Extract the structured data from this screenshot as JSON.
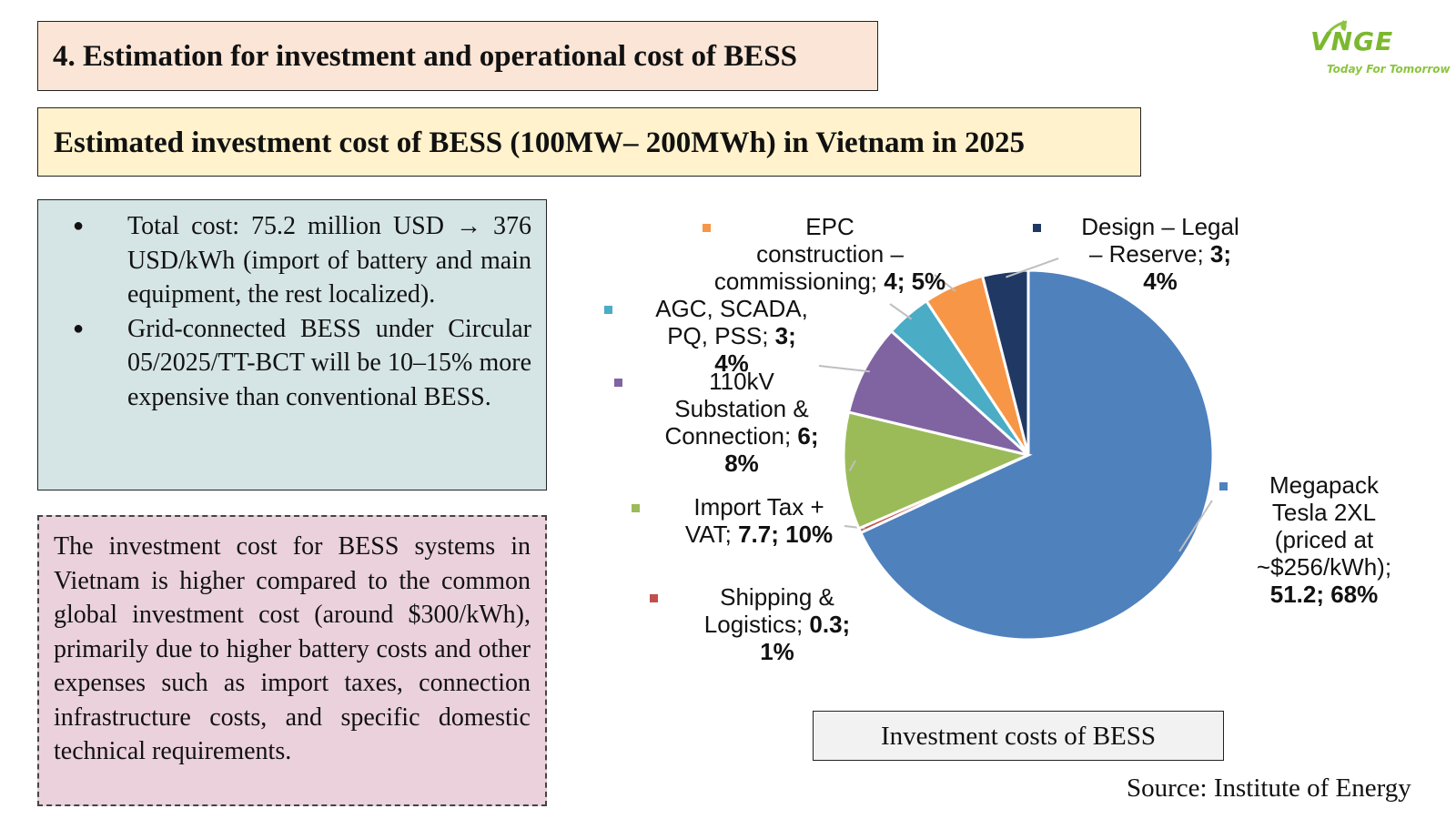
{
  "header": {
    "title": "4. Estimation for investment and operational cost of BESS",
    "subtitle": "Estimated investment cost of BESS (100MW– 200MWh) in Vietnam in 2025"
  },
  "logo": {
    "text": "VNGE",
    "tagline": "Today For Tomorrow",
    "color": "#7cb82f"
  },
  "bullets": [
    "Total cost: 75.2 million USD → 376 USD/kWh (import of battery and main equipment, the rest localized).",
    "Grid-connected BESS under Circular 05/2025/TT-BCT will be 10–15% more expensive than conventional BESS."
  ],
  "note": "The investment cost for BESS systems in Vietnam is higher compared to the common global investment cost (around $300/kWh), primarily due to higher battery costs and other expenses such as import taxes, connection infrastructure costs, and specific domestic technical requirements.",
  "chart_data": {
    "type": "pie",
    "caption": "Investment costs of BESS",
    "source": "Source: Institute of Energy",
    "slices": [
      {
        "name_lines": [
          "Megapack",
          "Tesla 2XL",
          "(priced at",
          "~$256/kWh);"
        ],
        "value": 51.2,
        "value_label": "51.2; 68%",
        "color": "#4f81bd"
      },
      {
        "name_lines": [
          "Shipping &",
          "Logistics;"
        ],
        "value": 0.3,
        "value_label": "0.3;",
        "value_label2": "1%",
        "color": "#c0504d"
      },
      {
        "name_lines": [
          "Import Tax +",
          "VAT;"
        ],
        "value": 7.7,
        "value_label": "7.7; 10%",
        "color": "#9bbb59"
      },
      {
        "name_lines": [
          "110kV",
          "Substation &",
          "Connection;"
        ],
        "value": 6,
        "value_label": "6;",
        "value_label2": "8%",
        "color": "#8064a2"
      },
      {
        "name_lines": [
          "AGC, SCADA,",
          "PQ, PSS;"
        ],
        "value": 3,
        "value_label": "3;",
        "value_label2": "4%",
        "color": "#4bacc6"
      },
      {
        "name_lines": [
          "EPC",
          "construction –",
          "commissioning;"
        ],
        "value": 4,
        "value_label": "4; 5%",
        "color": "#f79646"
      },
      {
        "name_lines": [
          "Design – Legal",
          "– Reserve;"
        ],
        "value": 3,
        "value_label": "3;",
        "value_label2": "4%",
        "color": "#1f3864"
      }
    ]
  }
}
